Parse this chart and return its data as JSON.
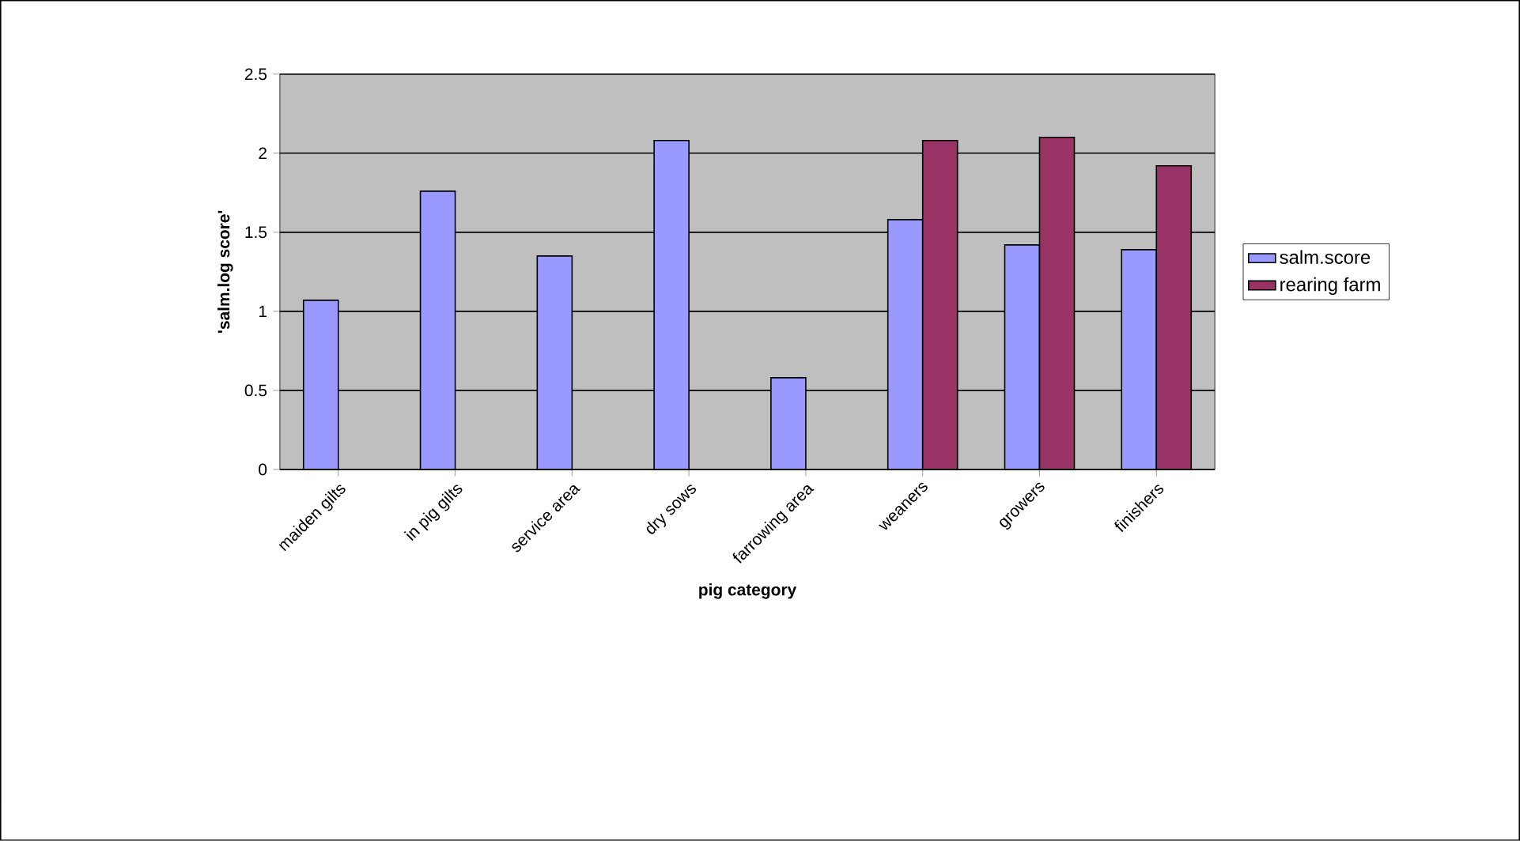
{
  "chart_data": {
    "type": "bar",
    "xlabel": "pig category",
    "ylabel": "'salm.log score'",
    "categories": [
      "maiden gilts",
      "in pig gilts",
      "service area",
      "dry sows",
      "farrowing area",
      "weaners",
      "growers",
      "finishers"
    ],
    "series": [
      {
        "name": "salm.score",
        "color": "#9999ff",
        "values": [
          1.07,
          1.76,
          1.35,
          2.08,
          0.58,
          1.58,
          1.42,
          1.39
        ]
      },
      {
        "name": "rearing farm",
        "color": "#993366",
        "values": [
          null,
          null,
          null,
          null,
          null,
          2.08,
          2.1,
          1.92
        ]
      }
    ],
    "ylim": [
      0,
      2.5
    ],
    "yticks": [
      0,
      0.5,
      1,
      1.5,
      2,
      2.5
    ],
    "grid": "y",
    "legend": "right"
  }
}
